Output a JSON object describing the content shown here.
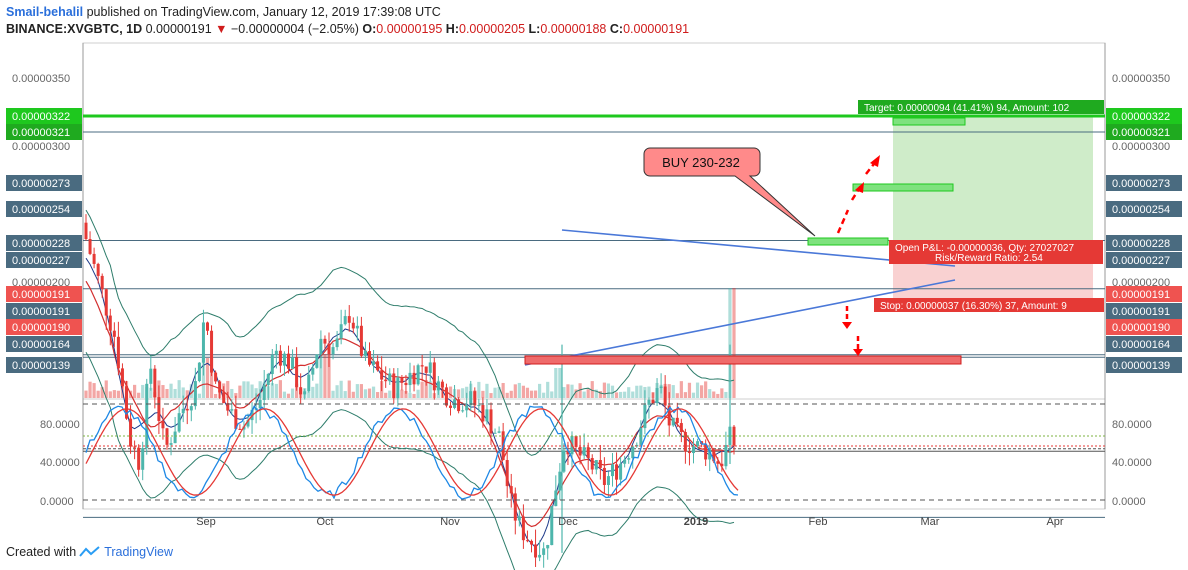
{
  "header": {
    "author": "Smail-behalil",
    "published_text": "published on TradingView.com, January 12, 2019 17:39:08 UTC",
    "symbol": "BINANCE:XVGBTC, 1D",
    "last": "0.00000191",
    "change": "−0.00000004 (−2.05%)",
    "o_label": "O:",
    "o": "0.00000195",
    "h_label": "H:",
    "h": "0.00000205",
    "l_label": "L:",
    "l": "0.00000188",
    "c_label": "C:",
    "c": "0.00000191"
  },
  "footer": {
    "created_with": "Created with",
    "brand": "TradingView"
  },
  "colors": {
    "up": "#4db6ac",
    "down": "#e53935",
    "green_line": "#1ec81e",
    "dark_label": "#4a6b80",
    "red_label": "#ef5350",
    "green_label": "#1faa1f",
    "trend": "#4a78d8"
  },
  "chart_data": {
    "type": "candlestick",
    "x_ticks": [
      "Sep",
      "Oct",
      "Nov",
      "Dec",
      "2019",
      "Feb",
      "Mar",
      "Apr"
    ],
    "y_ticks": [
      "0.00000350",
      "0.00000300",
      "0.00000200"
    ],
    "stoch_ticks": [
      "80.0000",
      "40.0000",
      "0.0000"
    ],
    "horizontal_levels": [
      {
        "value": "0.00000322",
        "side": "left",
        "color": "#1ec81e"
      },
      {
        "value": "0.00000321",
        "side": "left",
        "color": "#1faa1f"
      },
      {
        "value": "0.00000273",
        "side": "both",
        "color": "#4a6b80"
      },
      {
        "value": "0.00000254",
        "side": "both",
        "color": "#4a6b80"
      },
      {
        "value": "0.00000228",
        "side": "both",
        "color": "#4a6b80"
      },
      {
        "value": "0.00000227",
        "side": "both",
        "color": "#4a6b80"
      },
      {
        "value": "0.00000191",
        "side": "both",
        "color": "#ef5350"
      },
      {
        "value": "0.00000190",
        "side": "both",
        "color": "#ef5350"
      },
      {
        "value": "0.00000164",
        "side": "both",
        "color": "#4a6b80"
      },
      {
        "value": "0.00000139",
        "side": "both",
        "color": "#4a6b80"
      }
    ],
    "right_labels": [
      {
        "value": "0.00000322",
        "color": "#1ec81e"
      },
      {
        "value": "0.00000321",
        "color": "#1faa1f"
      },
      {
        "value": "0.00000273",
        "color": "#4a6b80"
      },
      {
        "value": "0.00000254",
        "color": "#4a6b80"
      },
      {
        "value": "0.00000228",
        "color": "#4a6b80"
      },
      {
        "value": "0.00000227",
        "color": "#4a6b80"
      },
      {
        "value": "0.00000191",
        "color": "#ef5350"
      },
      {
        "value": "0.00000191",
        "color": "#4a6b80"
      },
      {
        "value": "0.00000190",
        "color": "#ef5350"
      },
      {
        "value": "0.00000164",
        "color": "#4a6b80"
      },
      {
        "value": "0.00000139",
        "color": "#4a6b80"
      }
    ],
    "left_labels": [
      {
        "value": "0.00000322",
        "color": "#1ec81e"
      },
      {
        "value": "0.00000321",
        "color": "#1faa1f"
      },
      {
        "value": "0.00000273",
        "color": "#4a6b80"
      },
      {
        "value": "0.00000254",
        "color": "#4a6b80"
      },
      {
        "value": "0.00000228",
        "color": "#4a6b80"
      },
      {
        "value": "0.00000227",
        "color": "#4a6b80"
      },
      {
        "value": "0.00000191",
        "color": "#ef5350"
      },
      {
        "value": "0.00000191",
        "color": "#4a6b80"
      },
      {
        "value": "0.00000190",
        "color": "#ef5350"
      },
      {
        "value": "0.00000164",
        "color": "#4a6b80"
      },
      {
        "value": "0.00000139",
        "color": "#4a6b80"
      }
    ],
    "annotations": {
      "buy": "BUY 230-232",
      "target": "Target: 0.00000094 (41.41%) 94, Amount: 102",
      "pnl_line1": "Open P&L: -0.00000036, Qty: 27027027",
      "pnl_line2": "Risk/Reward Ratio: 2.54",
      "stop": "Stop: 0.00000037 (16.30%) 37, Amount: 9"
    }
  }
}
